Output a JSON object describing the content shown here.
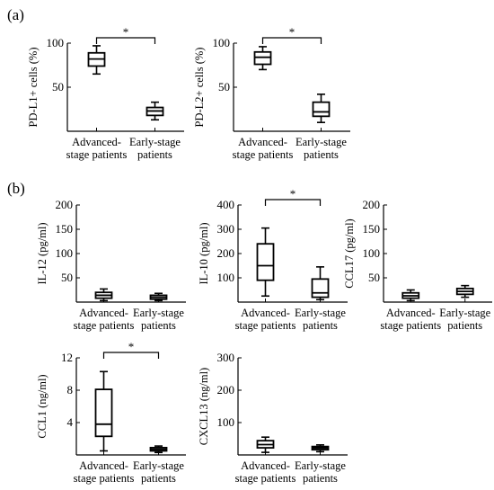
{
  "panel_labels": {
    "a": "(a)",
    "b": "(b)"
  },
  "x_categories": [
    [
      "Advanced-",
      "stage patients"
    ],
    [
      "Early-stage",
      "patients"
    ]
  ],
  "x_categories_single_line": [
    "Advanced-stage patients",
    "Early-stage patients"
  ],
  "significance_marker": "*",
  "chart_data": [
    {
      "type": "box",
      "panel": "(a)",
      "ylabel": "PD-L1+ cells (%)",
      "categories": [
        "Advanced-stage patients",
        "Early-stage patients"
      ],
      "ylim": [
        0,
        100
      ],
      "yticks": [
        50,
        100
      ],
      "boxes": [
        {
          "min": 65,
          "q1": 74,
          "median": 82,
          "q3": 89,
          "max": 97
        },
        {
          "min": 13,
          "q1": 18,
          "median": 23,
          "q3": 27,
          "max": 33
        }
      ],
      "significance": "*"
    },
    {
      "type": "box",
      "panel": "(a)",
      "ylabel": "PD-L2+ cells (%)",
      "categories": [
        "Advanced-stage patients",
        "Early-stage patients"
      ],
      "ylim": [
        0,
        100
      ],
      "yticks": [
        50,
        100
      ],
      "boxes": [
        {
          "min": 70,
          "q1": 76,
          "median": 84,
          "q3": 90,
          "max": 96
        },
        {
          "min": 10,
          "q1": 17,
          "median": 22,
          "q3": 33,
          "max": 42
        }
      ],
      "significance": "*"
    },
    {
      "type": "box",
      "panel": "(b)",
      "ylabel": "IL-12 (pg/ml)",
      "categories": [
        "Advanced-stage patients",
        "Early-stage patients"
      ],
      "ylim": [
        0,
        200
      ],
      "yticks": [
        50,
        100,
        150,
        200
      ],
      "boxes": [
        {
          "min": 3,
          "q1": 8,
          "median": 14,
          "q3": 20,
          "max": 27
        },
        {
          "min": 3,
          "q1": 6,
          "median": 10,
          "q3": 14,
          "max": 18
        }
      ]
    },
    {
      "type": "box",
      "panel": "(b)",
      "ylabel": "IL-10 (pg/ml)",
      "categories": [
        "Advanced-stage patients",
        "Early-stage patients"
      ],
      "ylim": [
        0,
        400
      ],
      "yticks": [
        100,
        200,
        300,
        400
      ],
      "boxes": [
        {
          "min": 25,
          "q1": 90,
          "median": 150,
          "q3": 240,
          "max": 305
        },
        {
          "min": 10,
          "q1": 20,
          "median": 38,
          "q3": 95,
          "max": 145
        }
      ],
      "significance": "*"
    },
    {
      "type": "box",
      "panel": "(b)",
      "ylabel": "CCL17 (pg/ml)",
      "categories": [
        "Advanced-stage patients",
        "Early-stage patients"
      ],
      "ylim": [
        0,
        200
      ],
      "yticks": [
        50,
        100,
        150,
        200
      ],
      "boxes": [
        {
          "min": 3,
          "q1": 8,
          "median": 13,
          "q3": 19,
          "max": 25
        },
        {
          "min": 10,
          "q1": 16,
          "median": 22,
          "q3": 28,
          "max": 34
        }
      ]
    },
    {
      "type": "box",
      "panel": "(b)",
      "ylabel": "CCL1 (ng/ml)",
      "categories": [
        "Advanced-stage patients",
        "Early-stage patients"
      ],
      "ylim": [
        0,
        12
      ],
      "yticks": [
        4,
        8,
        12
      ],
      "boxes": [
        {
          "min": 0.5,
          "q1": 2.3,
          "median": 3.8,
          "q3": 8.1,
          "max": 10.3
        },
        {
          "min": 0.3,
          "q1": 0.5,
          "median": 0.7,
          "q3": 0.9,
          "max": 1.1
        }
      ],
      "significance": "*"
    },
    {
      "type": "box",
      "panel": "(b)",
      "ylabel": "CXCL13 (ng/ml)",
      "categories": [
        "Advanced-stage patients",
        "Early-stage patients"
      ],
      "ylim": [
        0,
        300
      ],
      "yticks": [
        100,
        200,
        300
      ],
      "boxes": [
        {
          "min": 8,
          "q1": 22,
          "median": 32,
          "q3": 44,
          "max": 55
        },
        {
          "min": 10,
          "q1": 16,
          "median": 21,
          "q3": 26,
          "max": 31
        }
      ]
    }
  ]
}
